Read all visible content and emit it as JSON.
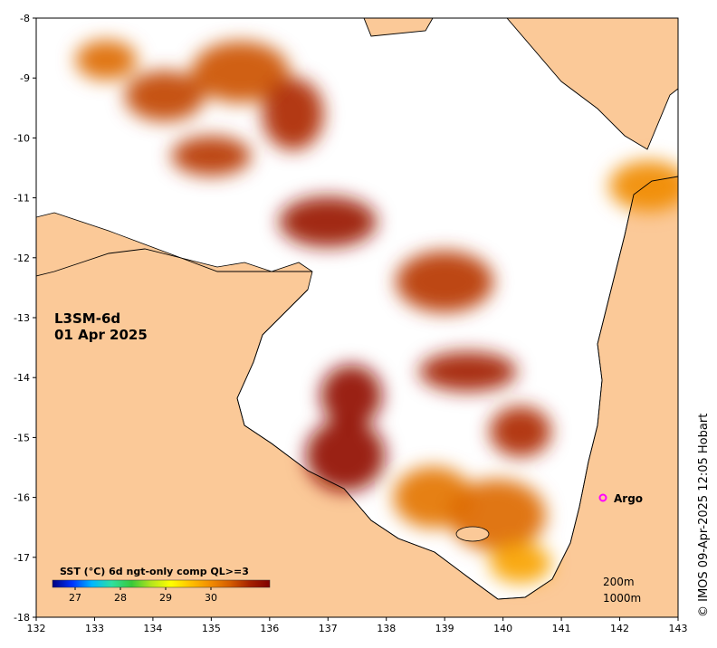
{
  "map": {
    "product": "L3SM-6d",
    "date": "01 Apr 2025",
    "x_ticks": [
      "132",
      "133",
      "134",
      "135",
      "136",
      "137",
      "138",
      "139",
      "140",
      "141",
      "142",
      "143"
    ],
    "y_ticks": [
      "-8",
      "-9",
      "-10",
      "-11",
      "-12",
      "-13",
      "-14",
      "-15",
      "-16",
      "-17",
      "-18"
    ],
    "credit": "© IMOS 09-Apr-2025 12:05 Hobart",
    "land_color": "#fbc998",
    "no_data_color": "#ffffff"
  },
  "colorbar": {
    "title": "SST (°C) 6d ngt-only comp QL>=3",
    "ticks": [
      "27",
      "28",
      "29",
      "30"
    ],
    "vmin": 26.5,
    "vmax": 31.3,
    "stops": [
      "#00007f",
      "#0033ff",
      "#00b7ff",
      "#2ee0a0",
      "#37c93a",
      "#b5e51d",
      "#ffff00",
      "#ffc000",
      "#f28c00",
      "#d45c00",
      "#a52000",
      "#800000"
    ]
  },
  "argo": {
    "label": "Argo",
    "color": "#ff00ff"
  },
  "contours": {
    "labels": [
      "200m",
      "1000m"
    ]
  },
  "sst_patches": [
    {
      "lon": 133.2,
      "lat": -8.7,
      "sst": 30.3
    },
    {
      "lon": 134.2,
      "lat": -9.3,
      "sst": 30.6
    },
    {
      "lon": 135.5,
      "lat": -8.9,
      "sst": 30.5
    },
    {
      "lon": 136.4,
      "lat": -9.6,
      "sst": 30.8
    },
    {
      "lon": 135.0,
      "lat": -10.3,
      "sst": 30.7
    },
    {
      "lon": 137.0,
      "lat": -11.4,
      "sst": 31.0
    },
    {
      "lon": 137.4,
      "lat": -14.3,
      "sst": 31.1
    },
    {
      "lon": 137.3,
      "lat": -15.3,
      "sst": 31.1
    },
    {
      "lon": 139.4,
      "lat": -13.9,
      "sst": 30.9
    },
    {
      "lon": 140.3,
      "lat": -14.9,
      "sst": 30.8
    },
    {
      "lon": 138.8,
      "lat": -16.0,
      "sst": 30.2
    },
    {
      "lon": 139.9,
      "lat": -16.3,
      "sst": 30.3
    },
    {
      "lon": 140.3,
      "lat": -17.1,
      "sst": 29.8
    },
    {
      "lon": 142.5,
      "lat": -10.8,
      "sst": 30.0
    },
    {
      "lon": 139.0,
      "lat": -12.4,
      "sst": 30.7
    }
  ]
}
